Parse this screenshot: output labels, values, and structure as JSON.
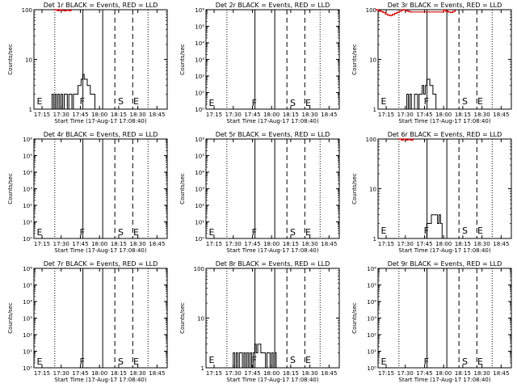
{
  "figure": {
    "xlabel": "Start Time (17-Aug-17 17:08:40)",
    "ylabel": "Counts/sec",
    "tick_labels": [
      "17:15",
      "17:30",
      "17:45",
      "18:00",
      "18:15",
      "18:30",
      "18:45"
    ]
  },
  "chart_data": [
    {
      "id": "1r",
      "title": "Det 1r BLACK = Events, RED = LLD",
      "type": "line",
      "yscale": "log",
      "ylim": [
        1,
        100
      ],
      "y_ticks": [
        {
          "v": 1,
          "label": "1"
        },
        {
          "v": 10,
          "label": "10"
        },
        {
          "v": 100,
          "label": "100"
        }
      ],
      "events": {
        "x": [
          17.36,
          17.38,
          17.4,
          17.42,
          17.44,
          17.46,
          17.48,
          17.5,
          17.52,
          17.54,
          17.56,
          17.58,
          17.6,
          17.62,
          17.64,
          17.66,
          17.68,
          17.7,
          17.72,
          17.74,
          17.76,
          17.78,
          17.8,
          17.82,
          17.84,
          17.86,
          17.88,
          17.9,
          17.92,
          17.94,
          17.96,
          17.98,
          18.0,
          18.02
        ],
        "y": [
          1,
          2,
          1,
          2,
          1,
          2,
          1,
          2,
          1,
          2,
          2,
          1,
          2,
          2,
          1,
          2,
          2,
          2,
          3,
          3,
          4,
          5,
          4,
          4,
          3,
          3,
          2,
          2,
          2,
          1,
          1,
          1,
          1,
          1
        ]
      },
      "lld": {
        "x": [
          17.42,
          17.45,
          17.48,
          17.51,
          17.54,
          17.57,
          17.6,
          17.63
        ],
        "y": [
          100,
          96,
          100,
          97,
          95,
          98,
          96,
          100
        ]
      }
    },
    {
      "id": "2r",
      "title": "Det 2r BLACK = Events, RED = LLD",
      "type": "line",
      "yscale": "log",
      "ylim": [
        1,
        1000000.0
      ],
      "y_ticks": [
        {
          "v": 1,
          "label": "10⁰"
        },
        {
          "v": 10,
          "label": "10¹"
        },
        {
          "v": 100,
          "label": "10²"
        },
        {
          "v": 1000,
          "label": "10³"
        },
        {
          "v": 10000,
          "label": "10⁴"
        },
        {
          "v": 100000,
          "label": "10⁵"
        },
        {
          "v": 1000000,
          "label": "10⁶"
        }
      ],
      "events": null,
      "lld": null
    },
    {
      "id": "3r",
      "title": "Det 3r BLACK = Events, RED = LLD",
      "type": "line",
      "yscale": "log",
      "ylim": [
        1,
        100
      ],
      "y_ticks": [
        {
          "v": 1,
          "label": "1"
        },
        {
          "v": 10,
          "label": "10"
        },
        {
          "v": 100,
          "label": "100"
        }
      ],
      "events": {
        "x": [
          17.5,
          17.52,
          17.54,
          17.56,
          17.58,
          17.6,
          17.62,
          17.64,
          17.66,
          17.68,
          17.7,
          17.72,
          17.74,
          17.76,
          17.78,
          17.8,
          17.82,
          17.84,
          17.86,
          17.88,
          17.9,
          17.92,
          17.94,
          17.96
        ],
        "y": [
          1,
          2,
          1,
          2,
          1,
          1,
          2,
          2,
          1,
          2,
          2,
          3,
          2,
          3,
          4,
          4,
          3,
          3,
          2,
          2,
          1,
          1,
          1,
          1
        ]
      },
      "lld": {
        "x": [
          17.12,
          17.15,
          17.18,
          17.21,
          17.24,
          17.27,
          17.3,
          17.33,
          17.36,
          17.39,
          17.42,
          17.45,
          17.48,
          17.51,
          17.54,
          17.57,
          18.0,
          18.03,
          18.06,
          18.09,
          18.12,
          18.15
        ],
        "y": [
          100,
          96,
          92,
          88,
          82,
          78,
          76,
          80,
          84,
          88,
          92,
          98,
          100,
          95,
          92,
          90,
          98,
          93,
          90,
          88,
          92,
          96
        ]
      }
    },
    {
      "id": "4r",
      "title": "Det 4r BLACK = Events, RED = LLD",
      "type": "line",
      "yscale": "log",
      "ylim": [
        1,
        1000000.0
      ],
      "y_ticks": [
        {
          "v": 1,
          "label": "10⁰"
        },
        {
          "v": 10,
          "label": "10¹"
        },
        {
          "v": 100,
          "label": "10²"
        },
        {
          "v": 1000,
          "label": "10³"
        },
        {
          "v": 10000,
          "label": "10⁴"
        },
        {
          "v": 100000,
          "label": "10⁵"
        },
        {
          "v": 1000000,
          "label": "10⁶"
        }
      ],
      "events": null,
      "lld": null
    },
    {
      "id": "5r",
      "title": "Det 5r BLACK = Events, RED = LLD",
      "type": "line",
      "yscale": "log",
      "ylim": [
        1,
        1000000.0
      ],
      "y_ticks": [
        {
          "v": 1,
          "label": "10⁰"
        },
        {
          "v": 10,
          "label": "10¹"
        },
        {
          "v": 100,
          "label": "10²"
        },
        {
          "v": 1000,
          "label": "10³"
        },
        {
          "v": 10000,
          "label": "10⁴"
        },
        {
          "v": 100000,
          "label": "10⁵"
        },
        {
          "v": 1000000,
          "label": "10⁶"
        }
      ],
      "events": null,
      "lld": null
    },
    {
      "id": "6r",
      "title": "Det 6r BLACK = Events, RED = LLD",
      "type": "line",
      "yscale": "log",
      "ylim": [
        1,
        100
      ],
      "y_ticks": [
        {
          "v": 1,
          "label": "1"
        },
        {
          "v": 10,
          "label": "10"
        },
        {
          "v": 100,
          "label": "100"
        }
      ],
      "events": {
        "x": [
          17.76,
          17.78,
          17.8,
          17.82,
          17.84,
          17.86,
          17.88,
          17.9,
          17.92,
          17.94,
          17.96,
          17.98,
          18.0
        ],
        "y": [
          1,
          2,
          2,
          2,
          3,
          3,
          3,
          3,
          2,
          3,
          2,
          1,
          1
        ]
      },
      "lld": {
        "x": [
          17.42,
          17.45,
          17.48,
          17.51,
          17.54,
          17.57,
          17.6
        ],
        "y": [
          100,
          96,
          100,
          96,
          98,
          95,
          100
        ]
      }
    },
    {
      "id": "7r",
      "title": "Det 7r BLACK = Events, RED = LLD",
      "type": "line",
      "yscale": "log",
      "ylim": [
        1,
        1000000.0
      ],
      "y_ticks": [
        {
          "v": 1,
          "label": "10⁰"
        },
        {
          "v": 10,
          "label": "10¹"
        },
        {
          "v": 100,
          "label": "10²"
        },
        {
          "v": 1000,
          "label": "10³"
        },
        {
          "v": 10000,
          "label": "10⁴"
        },
        {
          "v": 100000,
          "label": "10⁵"
        },
        {
          "v": 1000000,
          "label": "10⁶"
        }
      ],
      "events": null,
      "lld": null
    },
    {
      "id": "8r",
      "title": "Det 8r BLACK = Events, RED = LLD",
      "type": "line",
      "yscale": "log",
      "ylim": [
        1,
        100
      ],
      "y_ticks": [
        {
          "v": 1,
          "label": "1"
        },
        {
          "v": 10,
          "label": "10"
        },
        {
          "v": 100,
          "label": "100"
        }
      ],
      "events": {
        "x": [
          17.48,
          17.5,
          17.52,
          17.54,
          17.56,
          17.58,
          17.6,
          17.62,
          17.64,
          17.66,
          17.68,
          17.7,
          17.72,
          17.74,
          17.76,
          17.78,
          17.8,
          17.82,
          17.84,
          17.86,
          17.88,
          17.9,
          17.92,
          17.94,
          17.96,
          17.98,
          18.0,
          18.02,
          18.04,
          18.06,
          18.08,
          18.1
        ],
        "y": [
          1,
          2,
          1,
          2,
          1,
          2,
          2,
          1,
          2,
          1,
          2,
          1,
          2,
          1,
          2,
          3,
          2,
          3,
          3,
          2,
          2,
          2,
          1,
          2,
          2,
          1,
          2,
          1,
          2,
          1,
          1,
          1
        ]
      },
      "lld": null
    },
    {
      "id": "9r",
      "title": "Det 9r BLACK = Events, RED = LLD",
      "type": "line",
      "yscale": "log",
      "ylim": [
        1,
        1000000.0
      ],
      "y_ticks": [
        {
          "v": 1,
          "label": "10⁰"
        },
        {
          "v": 10,
          "label": "10¹"
        },
        {
          "v": 100,
          "label": "10²"
        },
        {
          "v": 1000,
          "label": "10³"
        },
        {
          "v": 10000,
          "label": "10⁴"
        },
        {
          "v": 100000,
          "label": "10⁵"
        },
        {
          "v": 1000000,
          "label": "10⁶"
        }
      ],
      "events": null,
      "lld": null
    }
  ],
  "markers": {
    "labels": [
      "E",
      "F",
      "S",
      "E"
    ],
    "solid_lines": [
      17.7833,
      18.0417
    ],
    "dashed_lines": [
      18.2,
      18.4333
    ],
    "dotted_lines": [
      17.4167,
      18.6333
    ],
    "letters": [
      {
        "label": "E",
        "x": 17.16,
        "style": "solid"
      },
      {
        "label": "F",
        "x": 17.72,
        "style": "solid"
      },
      {
        "label": "S",
        "x": 18.22,
        "style": "dashed"
      },
      {
        "label": "E",
        "x": 18.42,
        "style": "dashed"
      }
    ],
    "colors": {
      "events": "#000000",
      "lld": "#dd0000",
      "axes": "#000000"
    }
  },
  "x_axis": {
    "min": 17.1444,
    "max": 18.8833,
    "ticks": [
      17.25,
      17.5,
      17.75,
      18.0,
      18.25,
      18.5,
      18.75
    ]
  }
}
